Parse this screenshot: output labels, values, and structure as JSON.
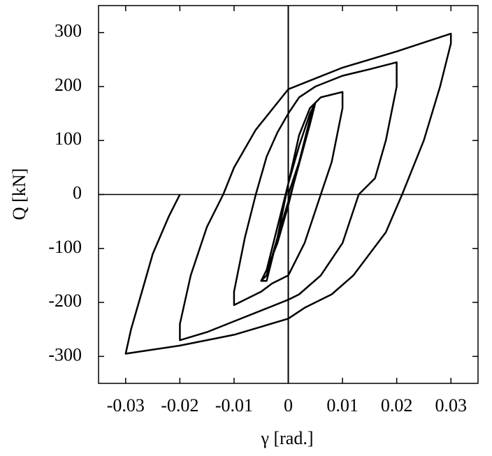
{
  "chart_data": {
    "type": "line",
    "x_label": "γ [rad.]",
    "y_label": "Q [kN]",
    "series": [
      {
        "color": "#000000",
        "x": [
          0,
          0.002,
          0.004,
          0.005,
          0.004,
          0.002,
          0,
          -0.002,
          -0.004,
          -0.005,
          -0.004,
          -0.002,
          0,
          0.002,
          0.004,
          0.005,
          0.004,
          0.001,
          -0.002,
          -0.004,
          -0.005,
          -0.004,
          -0.002,
          0,
          0.002,
          0.004,
          0.006,
          0.008,
          0.01,
          0.01,
          0.008,
          0.006,
          0.003,
          0,
          -0.003,
          -0.005,
          -0.01,
          -0.01,
          -0.008,
          -0.006,
          -0.004,
          -0.002,
          0,
          0.002,
          0.005,
          0.01,
          0.015,
          0.02,
          0.02,
          0.018,
          0.016,
          0.013,
          0.01,
          0.006,
          0.002,
          0,
          -0.005,
          -0.01,
          -0.015,
          -0.02,
          -0.02,
          -0.018,
          -0.015,
          -0.012,
          -0.01,
          -0.006,
          -0.002,
          0,
          0.005,
          0.01,
          0.02,
          0.03,
          0.03,
          0.028,
          0.025,
          0.021,
          0.018,
          0.012,
          0.008,
          0.003,
          0,
          -0.005,
          -0.01,
          -0.02,
          -0.03,
          -0.029,
          -0.027,
          -0.025,
          -0.022,
          -0.02
        ],
        "values": [
          0,
          60,
          130,
          170,
          140,
          60,
          -20,
          -90,
          -140,
          -160,
          -140,
          -60,
          20,
          90,
          150,
          170,
          130,
          20,
          -80,
          -150,
          -160,
          -160,
          -80,
          20,
          110,
          160,
          180,
          185,
          190,
          160,
          60,
          0,
          -90,
          -150,
          -165,
          -180,
          -205,
          -180,
          -80,
          0,
          70,
          115,
          150,
          180,
          200,
          220,
          232,
          245,
          200,
          100,
          30,
          0,
          -90,
          -150,
          -185,
          -195,
          -215,
          -235,
          -255,
          -270,
          -240,
          -150,
          -60,
          0,
          50,
          120,
          170,
          195,
          215,
          235,
          265,
          298,
          280,
          200,
          100,
          0,
          -70,
          -150,
          -185,
          -210,
          -230,
          -245,
          -260,
          -280,
          -295,
          -250,
          -180,
          -110,
          -40,
          0
        ]
      }
    ],
    "xlim": [
      -0.035,
      0.035
    ],
    "xticks": [
      -0.03,
      -0.02,
      -0.01,
      0,
      0.01,
      0.02,
      0.03
    ],
    "ylim": [
      -350,
      350
    ],
    "yticks": [
      -300,
      -200,
      -100,
      0,
      100,
      200,
      300
    ]
  }
}
